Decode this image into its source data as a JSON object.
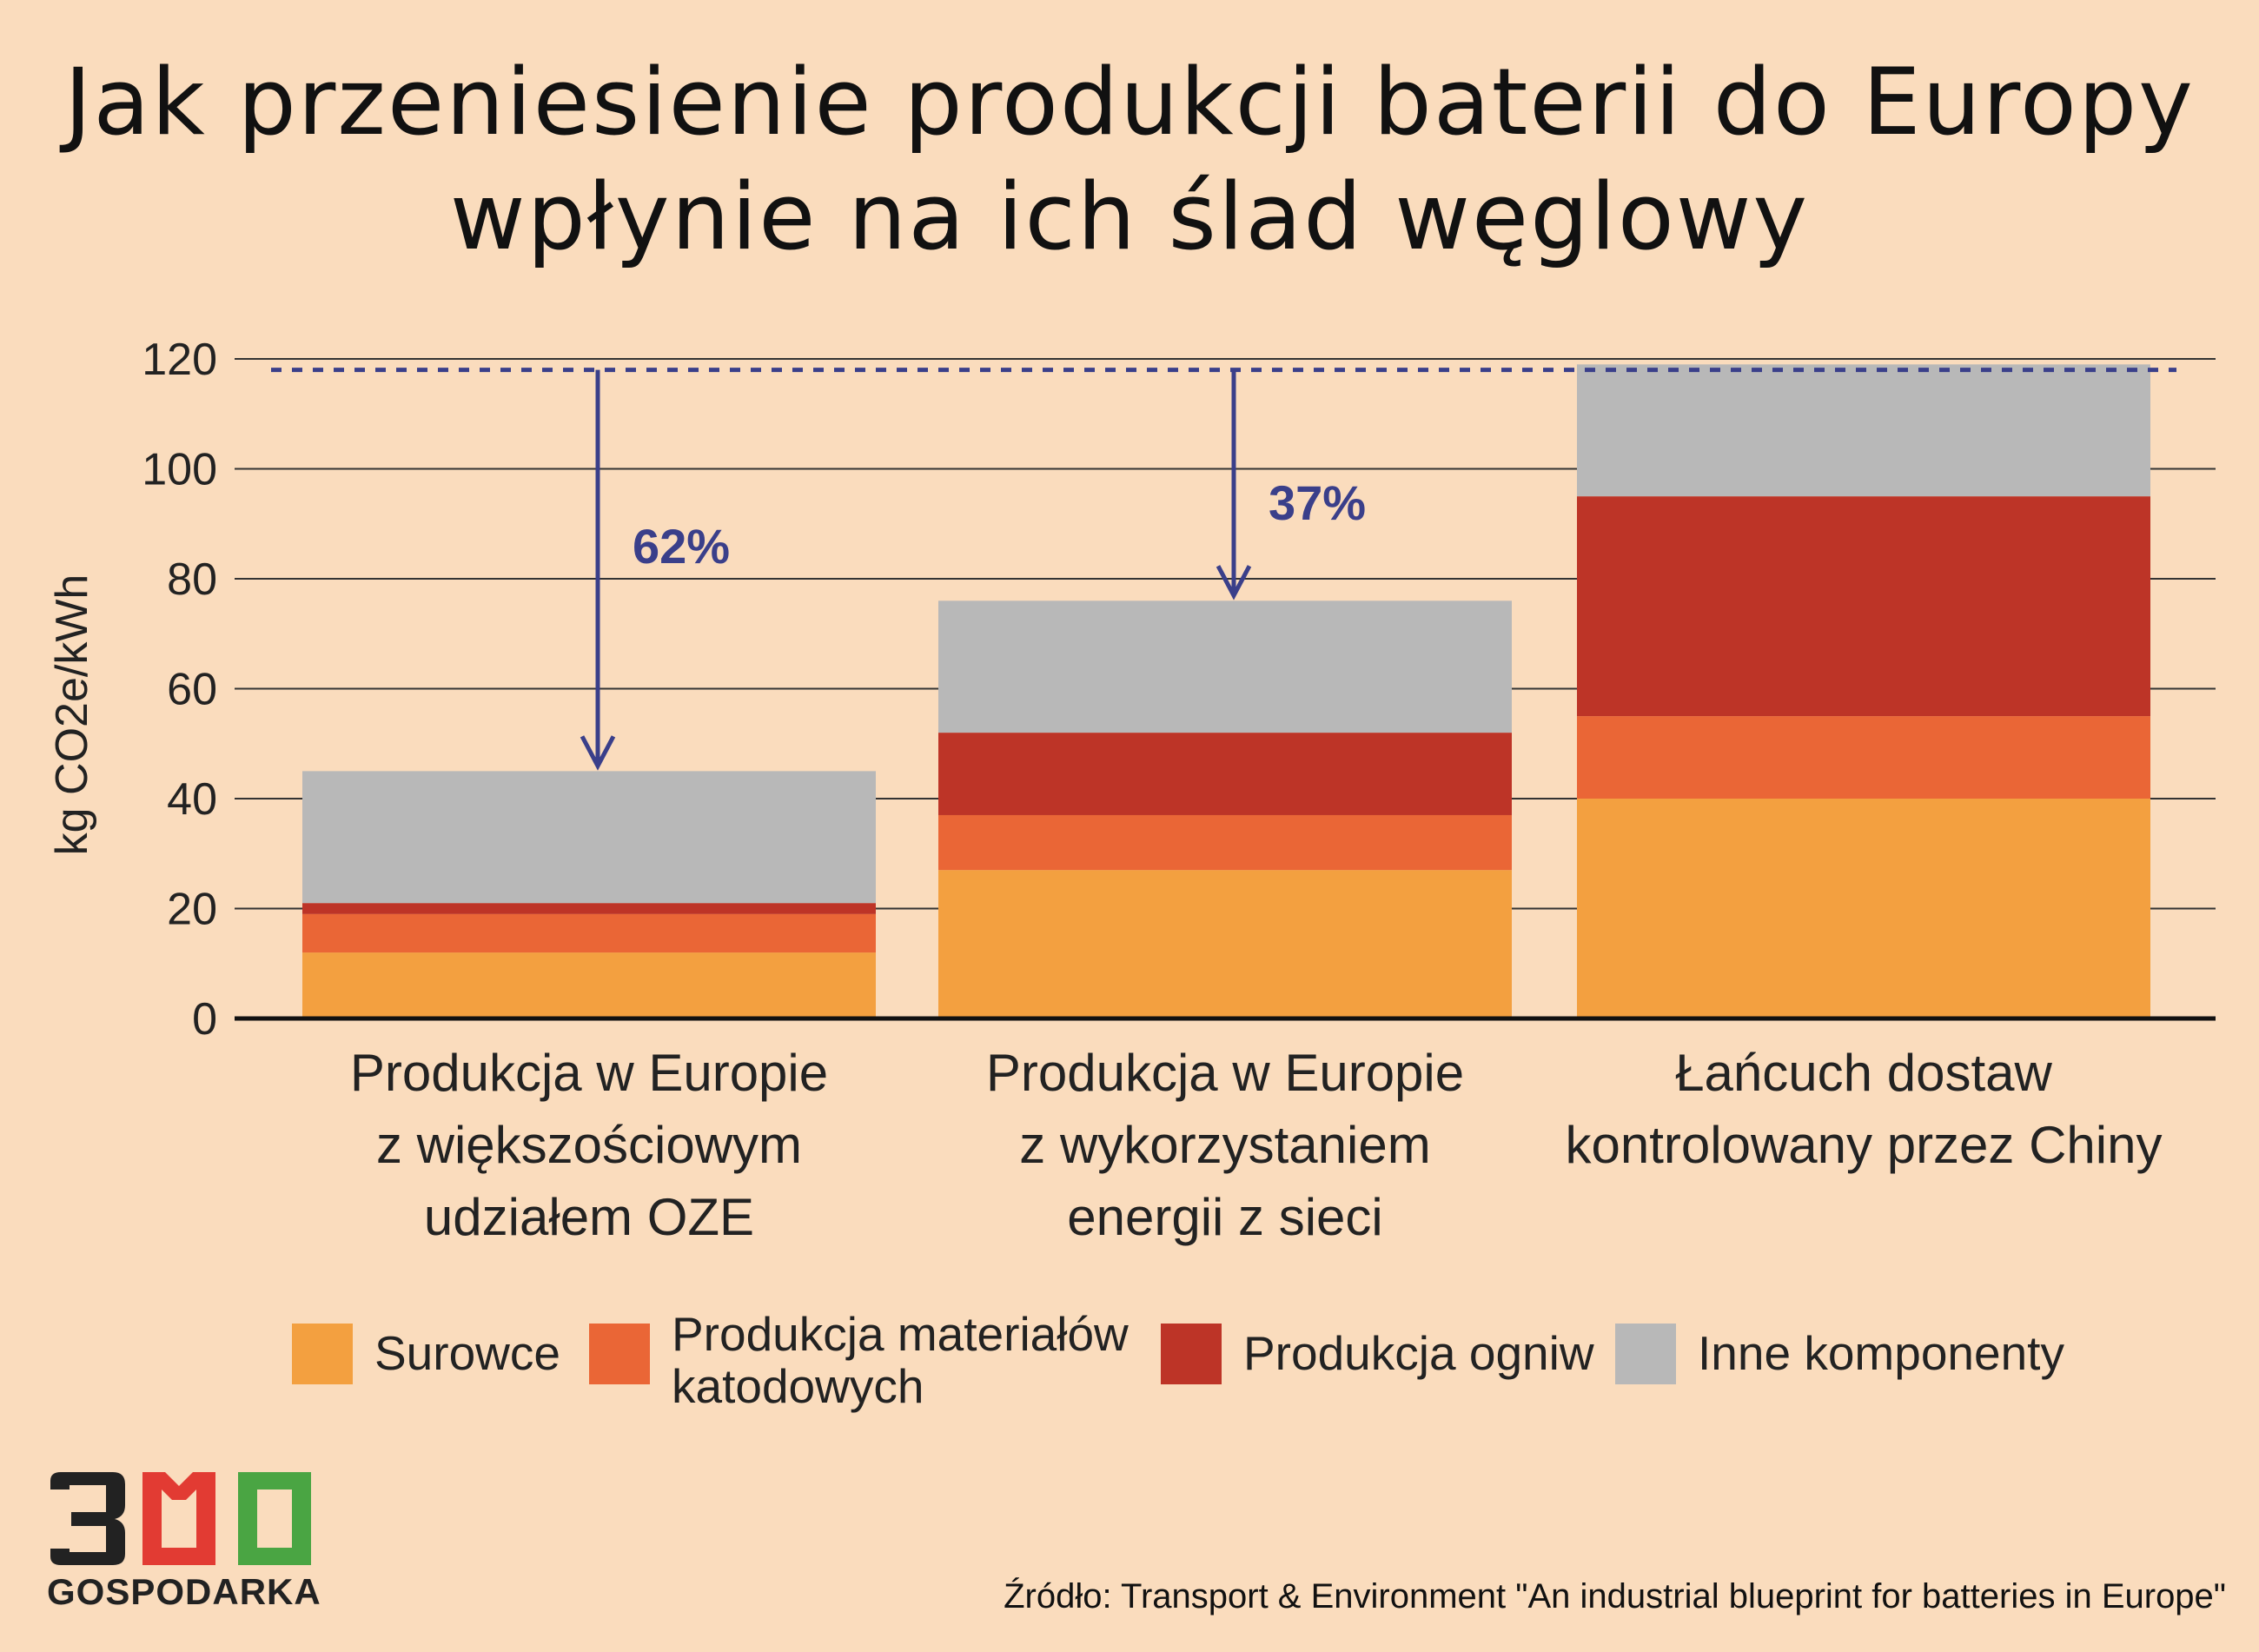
{
  "title": {
    "line1": "Jak przeniesienie produkcji baterii do Europy",
    "line2": "wpłynie na ich ślad węglowy"
  },
  "source": "Źródło: Transport & Environment \"An industrial blueprint for batteries in Europe\"",
  "logo": {
    "number": "300",
    "text": "GOSPODARKA"
  },
  "chart_data": {
    "type": "bar",
    "stacked": true,
    "ylabel": "kg CO2e/kWh",
    "ylim": [
      0,
      120
    ],
    "yticks": [
      0,
      20,
      40,
      60,
      80,
      100,
      120
    ],
    "grid": true,
    "legend_position": "bottom",
    "categories": [
      [
        "Produkcja w Europie",
        "z większościowym",
        "udziałem OZE"
      ],
      [
        "Produkcja w Europie",
        "z wykorzystaniem",
        "energii z sieci"
      ],
      [
        "Łańcuch dostaw",
        "kontrolowany przez Chiny"
      ]
    ],
    "series": [
      {
        "name": "Surowce",
        "color": "#f3a040",
        "values": [
          12,
          27,
          40
        ]
      },
      {
        "name": "Produkcja materiałów katodowych",
        "color": "#ea6636",
        "values": [
          7,
          10,
          15
        ]
      },
      {
        "name": "Produkcja ogniw",
        "color": "#bd3427",
        "values": [
          2,
          15,
          40
        ]
      },
      {
        "name": "Inne komponenty",
        "color": "#b8b8b8",
        "values": [
          24,
          24,
          24
        ]
      }
    ],
    "reference_line": {
      "value": 118,
      "color": "#3a3f8a"
    },
    "annotations": [
      {
        "category_index": 0,
        "label": "62%",
        "from": 118,
        "to": 45
      },
      {
        "category_index": 1,
        "label": "37%",
        "from": 118,
        "to": 76
      }
    ]
  },
  "legend": [
    {
      "lines": [
        "Surowce"
      ]
    },
    {
      "lines": [
        "Produkcja materiałów",
        "katodowych"
      ]
    },
    {
      "lines": [
        "Produkcja ogniw"
      ]
    },
    {
      "lines": [
        "Inne komponenty"
      ]
    }
  ],
  "colors": {
    "background": "#fadcbd",
    "annotation": "#3a3f8a",
    "logo_red": "#e23b33",
    "logo_green": "#4aa543",
    "logo_dark": "#222222"
  }
}
